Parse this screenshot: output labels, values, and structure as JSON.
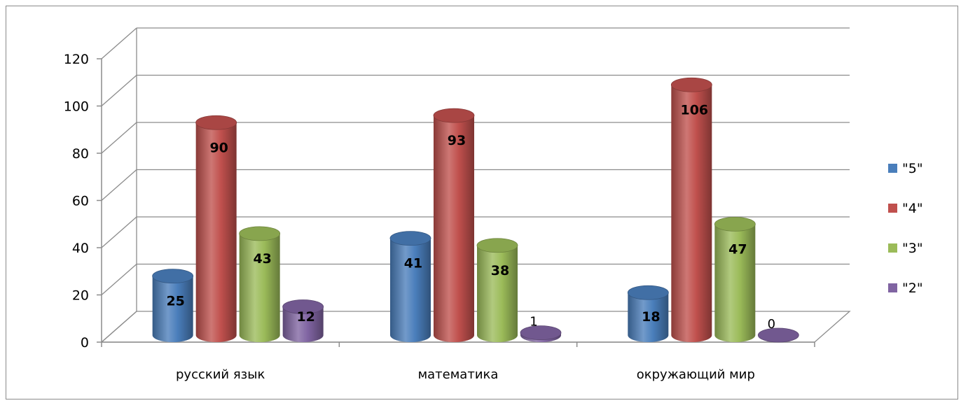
{
  "chart_data": {
    "type": "bar",
    "style": "3d-cylinder",
    "categories": [
      "русский язык",
      "математика",
      "окружающий мир"
    ],
    "series": [
      {
        "name": "\"5\"",
        "values": [
          25,
          41,
          18
        ],
        "color": "#4a7ebb"
      },
      {
        "name": "\"4\"",
        "values": [
          90,
          93,
          106
        ],
        "color": "#c0504d"
      },
      {
        "name": "\"3\"",
        "values": [
          43,
          38,
          47
        ],
        "color": "#9bbb59"
      },
      {
        "name": "\"2\"",
        "values": [
          12,
          1,
          0
        ],
        "color": "#8064a2"
      }
    ],
    "ylim": [
      0,
      120
    ],
    "yticks": [
      "0",
      "20",
      "40",
      "60",
      "80",
      "100",
      "120"
    ],
    "grid": true,
    "legend_position": "right",
    "data_labels": true
  }
}
